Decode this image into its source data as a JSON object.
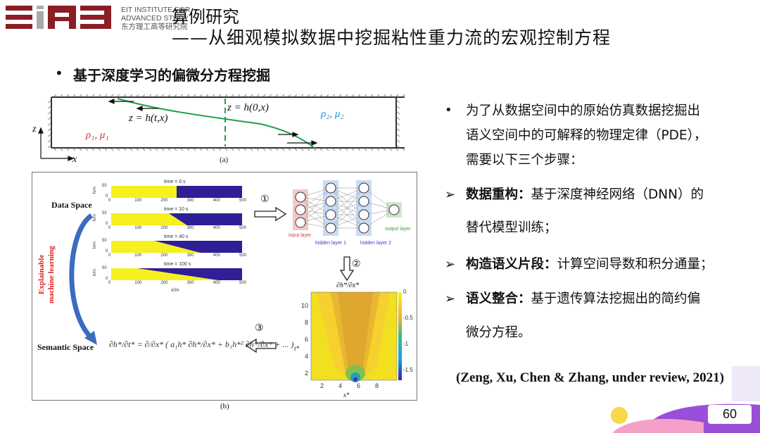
{
  "logo": {
    "lines": [
      "EIT INSTITUTE FOR",
      "ADVANCED STUDY",
      "东方理工高等研究院"
    ],
    "color": "#8b1d25"
  },
  "title": {
    "line1": "算例研究",
    "line2": "——从细观模拟数据中挖掘粘性重力流的宏观控制方程"
  },
  "subtitle": "基于深度学习的偏微分方程挖掘",
  "figure_a": {
    "caption": "(a)",
    "interface_moving": "z = h(t,x)",
    "interface_initial": "z = h(0,x)",
    "fluid1": "ρ₁, μ₁",
    "fluid2": "ρ₂, μ₂",
    "axis_z": "z",
    "axis_x": "x"
  },
  "figure_b": {
    "caption": "(b)",
    "data_space": "Data Space",
    "semantic_space": "Semantic Space",
    "side_label_1": "Explainable",
    "side_label_2": "machine learning",
    "snapshots": [
      {
        "title": "time = 0 s"
      },
      {
        "title": "time = 10 s"
      },
      {
        "title": "time = 40 s"
      },
      {
        "title": "time = 100 s"
      }
    ],
    "snapshot_ylabel": "h/m",
    "snapshot_yticks": [
      "50",
      "0"
    ],
    "snapshot_xticks": [
      "0",
      "100",
      "200",
      "300",
      "400",
      "500"
    ],
    "snapshot_xlabel": "x/m",
    "step1": "①",
    "step2": "②",
    "step3": "③",
    "nn_labels": {
      "input": "input layer",
      "hidden1": "hidden layer 1",
      "hidden2": "hidden layer 2",
      "output": "output layer"
    },
    "contour_title": "∂h*/∂x*",
    "contour_xlabel": "x*",
    "contour_ylabel": "t*",
    "contour_xticks": [
      "2",
      "4",
      "6",
      "8"
    ],
    "contour_yticks": [
      "10",
      "8",
      "6",
      "4",
      "2"
    ],
    "colorbar_ticks": [
      "0",
      "-0.5",
      "-1",
      "-1.5"
    ],
    "equation": "∂h*/∂t* = ∂/∂x* ( a₁h* ∂h*/∂x* + b₁h*² ∂h*/∂x* + ... )"
  },
  "right": {
    "intro": [
      "为了从数据空间中的原始仿真数据挖掘出",
      "语义空间中的可解释的物理定律（PDE），",
      "需要以下三个步骤："
    ],
    "steps": [
      {
        "bold": "数据重构：",
        "text": "基于深度神经网络（DNN）的",
        "cont": "替代模型训练；"
      },
      {
        "bold": "构造语义片段：",
        "text": "计算空间导数和积分通量；"
      },
      {
        "bold": "语义整合：",
        "text": "基于遗传算法挖掘出的简约偏",
        "cont": "微分方程。"
      }
    ],
    "citation": "(Zeng, Xu, Chen & Zhang, under review, 2021)"
  },
  "page_number": "60"
}
